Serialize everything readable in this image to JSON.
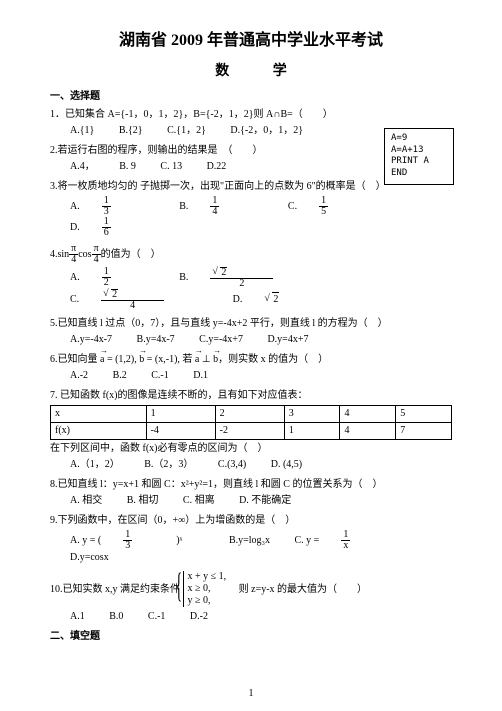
{
  "title": "湖南省 2009 年普通高中学业水平考试",
  "subject": "数 学",
  "sec1": "一、选择题",
  "q1": {
    "stem": "1．已知集合 A={-1，0，1，2}，B={-2，1，2}则 A∩B=（　　）",
    "optA": "A.{1}",
    "optB": "B.{2}",
    "optC": "C.{1，2}",
    "optD": "D.{-2，0，1，2}"
  },
  "codebox": {
    "l1": "A=9",
    "l2": "A=A+13",
    "l3": "PRINT A",
    "l4": "END"
  },
  "q2": {
    "stem": "2.若运行右图的程序，则输出的结果是　（　　）",
    "optA": "A.4，",
    "optB": "B. 9",
    "optC": "C. 13",
    "optD": "D.22"
  },
  "q3": {
    "stem": "3.将一枚质地均匀的 子抛掷一次，出现\"正面向上的点数为 6\"的概率是（　）",
    "optA_pre": "A.",
    "optA_n": "1",
    "optA_d": "3",
    "optB_pre": "B.",
    "optB_n": "1",
    "optB_d": "4",
    "optC_pre": "C.",
    "optC_n": "1",
    "optC_d": "5",
    "optD_pre": "D.",
    "optD_n": "1",
    "optD_d": "6"
  },
  "q4": {
    "stem_pre": "4.sin",
    "stem_n": "π",
    "stem_d": "4",
    "stem_mid": "cos",
    "stem_n2": "π",
    "stem_d2": "4",
    "stem_post": "的值为（　）",
    "optA_pre": "A.",
    "optA_n": "1",
    "optA_d": "2",
    "optB_pre": "B.",
    "optB_rn": "2",
    "optB_d": "2",
    "optC_pre": "C.",
    "optC_rn": "2",
    "optC_d": "4",
    "optD_pre": "D.",
    "optD_r": "2"
  },
  "q5": {
    "stem": "5.已知直线 l 过点（0，7），且与直线 y=-4x+2 平行，则直线 l 的方程为（　）",
    "optA": "A.y=-4x-7",
    "optB": "B.y=4x-7",
    "optC": "C.y=-4x+7",
    "optD": "D.y=4x+7"
  },
  "q6": {
    "stem_pre": "6.已知向量 ",
    "a": "a",
    "aval": " = (1,2), ",
    "b": "b",
    "bval": " = (x,-1), 若 ",
    "a2": "a",
    "perp": " ⊥ ",
    "b2": "b",
    "post": "，则实数 x 的值为（　）",
    "optA": "A.-2",
    "optB": "B.2",
    "optC": "C.-1",
    "optD": "D.1"
  },
  "q7": {
    "stem": "7. 已知函数 f(x)的图像是连续不断的，且有如下对应值表：",
    "h1": "x",
    "h2": "1",
    "h3": "2",
    "h4": "3",
    "h5": "4",
    "h6": "5",
    "r1": "f(x)",
    "r2": "-4",
    "r3": "-2",
    "r4": "1",
    "r5": "4",
    "r6": "7",
    "post": "在下列区间中，函数 f(x)必有零点的区间为（　）",
    "optA": "A.（1，2）",
    "optB": "B.（2，3）",
    "optC": "C.(3,4)",
    "optD": "D. (4,5)"
  },
  "q8": {
    "stem": "8.已知直线 l：y=x+1 和圆 C：x²+y²=1，则直线 l 和圆 C 的位置关系为（　）",
    "optA": "A. 相交",
    "optB": "B. 相切",
    "optC": "C. 相离",
    "optD": "D. 不能确定"
  },
  "q9": {
    "stem": "9.下列函数中，在区间（0，+∞）上为增函数的是（　）",
    "optA_pre": "A. y = (",
    "optA_n": "1",
    "optA_d": "3",
    "optA_post": ")ˣ",
    "optB": "B.y=log₃x",
    "optC_pre": "C. y = ",
    "optC_n": "1",
    "optC_d": "x",
    "optD": "D.y=cosx"
  },
  "q10": {
    "stem_pre": "10.已知实数 x,y 满足约束条件",
    "c1": "x + y ≤ 1,",
    "c2": "x ≥ 0,",
    "c3": "y ≥ 0,",
    "stem_post": "　则 z=y-x 的最大值为（　　）",
    "optA": "A.1",
    "optB": "B.0",
    "optC": "C.-1",
    "optD": "D.-2"
  },
  "sec2": "二、填空题",
  "page_num": "1"
}
